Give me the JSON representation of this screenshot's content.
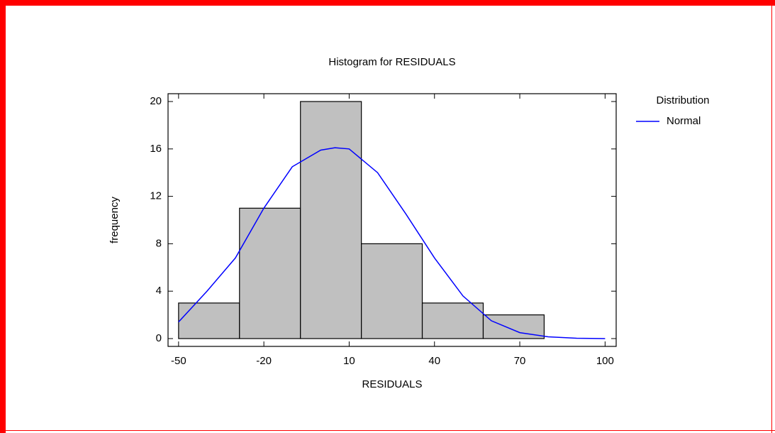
{
  "chart_data": {
    "type": "histogram",
    "title": "Histogram for RESIDUALS",
    "xlabel": "RESIDUALS",
    "ylabel": "frequency",
    "bins": [
      -50,
      -28.57,
      -7.14,
      14.29,
      35.71,
      57.14,
      78.57
    ],
    "values": [
      3,
      11,
      20,
      8,
      3,
      2
    ],
    "color": "#c0c0c0",
    "xlim": [
      -53.7,
      103.9
    ],
    "ylim": [
      -0.66,
      20.66
    ],
    "xticks": [
      -50,
      -20,
      10,
      40,
      70,
      100
    ],
    "yticks": [
      0,
      4,
      8,
      12,
      16,
      20
    ],
    "legend_title": "Distribution",
    "series": [
      {
        "name": "Normal",
        "color": "#0000ff",
        "x": [
          -50,
          -40,
          -30,
          -20,
          -10,
          0,
          5,
          10,
          20,
          30,
          40,
          50,
          60,
          70,
          80,
          90,
          100
        ],
        "values": [
          1.4,
          4.0,
          6.8,
          11.0,
          14.5,
          15.9,
          16.1,
          16.0,
          14.0,
          10.5,
          6.8,
          3.6,
          1.5,
          0.5,
          0.15,
          0.03,
          0
        ]
      }
    ]
  }
}
